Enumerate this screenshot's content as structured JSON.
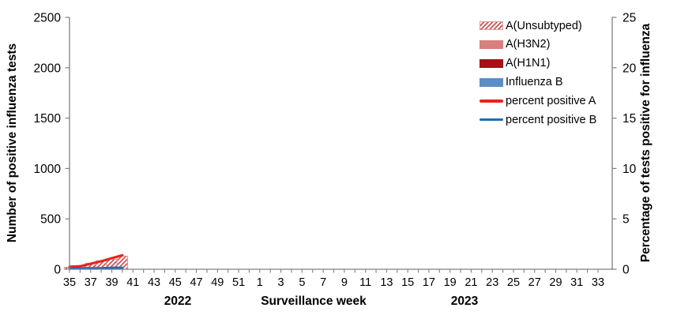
{
  "chart_data": {
    "type": "bar",
    "subtype": "stacked-bar-with-percent-lines",
    "title": "",
    "x_axis": {
      "title": "Surveillance week",
      "year_labels": [
        "2022",
        "2023"
      ],
      "weeks": [
        35,
        36,
        37,
        38,
        39,
        40,
        41,
        42,
        43,
        44,
        45,
        46,
        47,
        48,
        49,
        50,
        51,
        52,
        1,
        2,
        3,
        4,
        5,
        6,
        7,
        8,
        9,
        10,
        11,
        12,
        13,
        14,
        15,
        16,
        17,
        18,
        19,
        20,
        21,
        22,
        23,
        24,
        25,
        26,
        27,
        28,
        29,
        30,
        31,
        32,
        33
      ],
      "tick_labels": [
        35,
        37,
        39,
        41,
        43,
        45,
        47,
        49,
        51,
        1,
        3,
        5,
        7,
        9,
        11,
        13,
        15,
        17,
        19,
        21,
        23,
        25,
        27,
        29,
        31,
        33
      ]
    },
    "left_axis": {
      "title": "Number of positive influenza tests",
      "min": 0,
      "max": 2500,
      "ticks": [
        0,
        500,
        1000,
        1500,
        2000,
        2500
      ]
    },
    "right_axis": {
      "title": "Percentage of tests positive for influenza",
      "min": 0,
      "max": 25,
      "ticks": [
        0,
        5,
        10,
        15,
        20,
        25
      ]
    },
    "series": [
      {
        "name": "A(Unsubtyped)",
        "type": "bar",
        "style": "hatched",
        "color": "#cf5350",
        "values_by_week": {
          "35": 20,
          "36": 35,
          "37": 60,
          "38": 85,
          "39": 100,
          "40": 130
        }
      },
      {
        "name": "A(H3N2)",
        "type": "bar",
        "style": "solid",
        "color": "#d8807d",
        "values_by_week": {}
      },
      {
        "name": "A(H1N1)",
        "type": "bar",
        "style": "solid",
        "color": "#a81016",
        "values_by_week": {}
      },
      {
        "name": "Influenza B",
        "type": "bar",
        "style": "solid",
        "color": "#5b8ec4",
        "values_by_week": {}
      },
      {
        "name": "percent positive A",
        "type": "line",
        "axis": "right",
        "color": "#e8231c",
        "values_by_week": {
          "35": 0.25,
          "36": 0.3,
          "37": 0.55,
          "38": 0.8,
          "39": 1.1,
          "40": 1.4
        }
      },
      {
        "name": "percent positive B",
        "type": "line",
        "axis": "right",
        "color": "#1a6fb5",
        "values_by_week": {
          "35": 0.1,
          "36": 0.1,
          "37": 0.1,
          "38": 0.1,
          "39": 0.15,
          "40": 0.15
        }
      }
    ],
    "layout_hints": {
      "grid": false,
      "legend_position": "inside-top-right"
    }
  },
  "colors": {
    "axis": "#808080",
    "hatch_stripe": "#cf5350",
    "hatch_border": "#dc9b99",
    "text": "#000000"
  }
}
